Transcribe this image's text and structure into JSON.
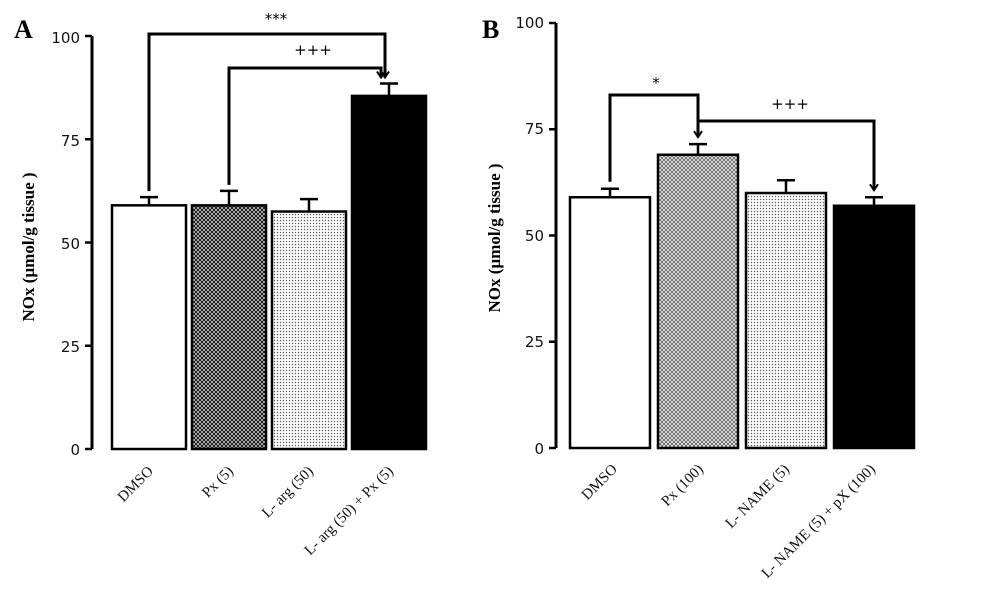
{
  "colors": {
    "frame": "#000000",
    "bar_edge": "#000000",
    "background": "#ffffff",
    "solid": "#000000",
    "crosshatch_dark": "#2a2a2a",
    "crosshatch_light": "#777777",
    "dots": "#6a6a6a"
  },
  "chart_data": [
    {
      "panel": "A",
      "type": "bar",
      "ylabel": "NOx (µmol/g tissue )",
      "ylim": [
        0,
        100
      ],
      "yticks": [
        "0",
        "25",
        "50",
        "75",
        "100"
      ],
      "categories": [
        "DMSO",
        "Px (5)",
        "L- arg (50)",
        "L- arg (50) + Px (5)"
      ],
      "values": [
        59,
        59,
        57.5,
        85.5
      ],
      "errors": [
        2,
        3.5,
        3,
        3
      ],
      "fills": [
        "none",
        "crosshatch_dark",
        "dots",
        "solid"
      ],
      "brackets": [
        {
          "label": "***",
          "from": 0,
          "to": 3,
          "level": 100
        },
        {
          "label": "+++",
          "from": 1,
          "to": 3,
          "level": 92
        }
      ],
      "grid": false,
      "legend": "none"
    },
    {
      "panel": "B",
      "type": "bar",
      "ylabel": "NOx (µmol/g tissue )",
      "ylim": [
        0,
        100
      ],
      "yticks": [
        "0",
        "25",
        "50",
        "75",
        "100"
      ],
      "categories": [
        "DMSO",
        "Px (100)",
        "L- NAME (5)",
        "L- NAME (5) + pX (100)"
      ],
      "values": [
        59,
        69,
        60,
        57
      ],
      "errors": [
        2,
        2.5,
        3,
        2
      ],
      "fills": [
        "none",
        "crosshatch_light",
        "dots",
        "solid"
      ],
      "brackets": [
        {
          "label": "*",
          "from": 0,
          "to": 1,
          "level": 80
        },
        {
          "label": "+++",
          "from": 1,
          "to": 3,
          "level": 75
        }
      ],
      "grid": false,
      "legend": "none"
    }
  ]
}
